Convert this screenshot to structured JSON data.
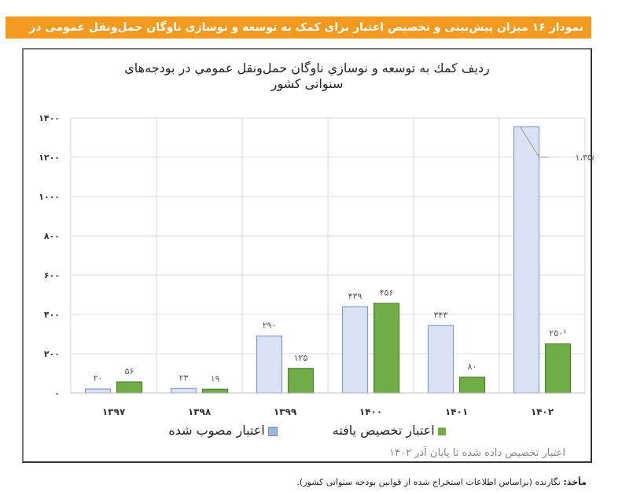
{
  "header": {
    "title": "نمودار ۱۶ میزان پیش‌بینی و تخصیص اعتبار برای کمک به توسعه و نوسازی ناوگان حمل‌ونقل عمومی در بودجه‌های سنواتی کشور"
  },
  "chart_data": {
    "type": "bar",
    "title_line1": "رديف كمك به توسعه و نوسازي ناوگان حمل‌ونقل عمومي در بودجه‌های",
    "title_line2": "سنواتی کشور",
    "categories": [
      "۱۳۹۷",
      "۱۳۹۸",
      "۱۳۹۹",
      "۱۴۰۰",
      "۱۴۰۱",
      "۱۴۰۲"
    ],
    "series": [
      {
        "name": "اعتبار مصوب شده",
        "color": "#dae3f3",
        "stroke": "#7f9bc8",
        "values": [
          20,
          23,
          290,
          439,
          343,
          1355
        ],
        "labels": [
          "۲۰",
          "۲۳",
          "۲۹۰",
          "۴۳۹",
          "۳۴۳",
          "۱،۳۵۵"
        ]
      },
      {
        "name": "اعتبار تخصیص یافته",
        "color": "#70ad47",
        "stroke": "#507e32",
        "values": [
          56,
          19,
          125,
          456,
          80,
          250
        ],
        "labels": [
          "۵۶",
          "۱۹",
          "۱۲۵",
          "۴۵۶",
          "۸۰",
          "۲۵۰¹"
        ]
      }
    ],
    "ylim": [
      0,
      1400
    ],
    "yticks": [
      0,
      200,
      400,
      600,
      800,
      1000,
      1200,
      1400
    ],
    "ytick_labels": [
      "۰",
      "۲۰۰",
      "۴۰۰",
      "۶۰۰",
      "۸۰۰",
      "۱۰۰۰",
      "۱۲۰۰",
      "۱۴۰۰"
    ],
    "grid": true,
    "legend_placement": "bottom",
    "note": "اعتبار تخصیص داده شده تا پایان آذر ۱۴۰۲"
  },
  "source": {
    "label": "مأخذ:",
    "text": " نگارنده (براساس اطلاعات استخراج شده از قوانین بودجه سنواتی کشور)."
  }
}
